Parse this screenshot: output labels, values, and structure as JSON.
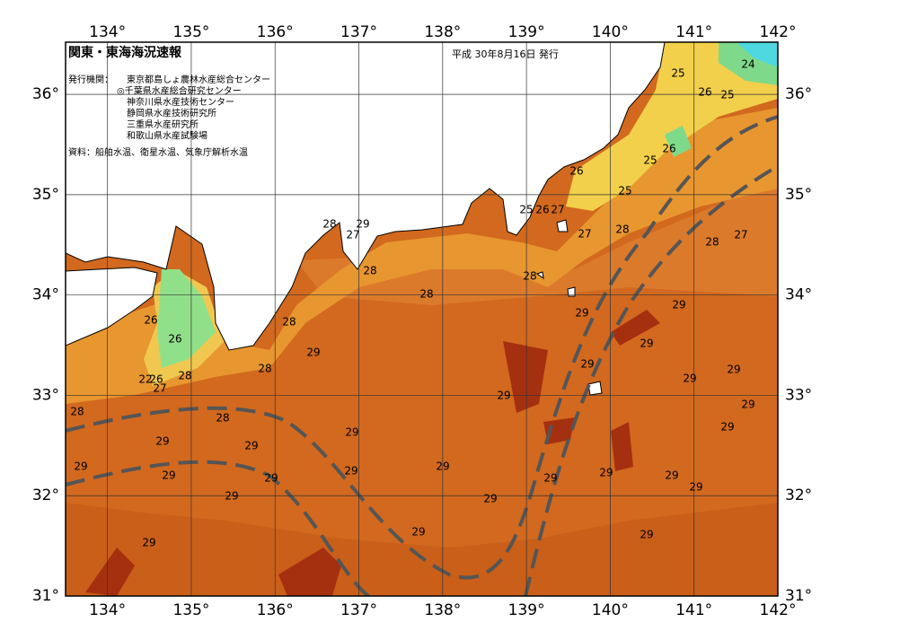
{
  "header": {
    "title": "関東・東海海況速報",
    "date": "平成 30年8月16日 発行",
    "issuer_label": "発行機関：",
    "issuers": [
      "東京都島しょ農林水産総合センター",
      "◎千葉県水産総合研究センター",
      "神奈川県水産技術センター",
      "静岡県水産技術研究所",
      "三重県水産研究所",
      "和歌山県水産試験場"
    ],
    "source": "資料：船舶水温、衛星水温、気象庁解析水温"
  },
  "map": {
    "lon_ticks": [
      {
        "value": 134,
        "label": "134°"
      },
      {
        "value": 135,
        "label": "135°"
      },
      {
        "value": 136,
        "label": "136°"
      },
      {
        "value": 137,
        "label": "137°"
      },
      {
        "value": 138,
        "label": "138°"
      },
      {
        "value": 139,
        "label": "139°"
      },
      {
        "value": 140,
        "label": "140°"
      },
      {
        "value": 141,
        "label": "141°"
      },
      {
        "value": 142,
        "label": "142°"
      }
    ],
    "lat_ticks": [
      {
        "value": 31,
        "label": "31°"
      },
      {
        "value": 32,
        "label": "32°"
      },
      {
        "value": 33,
        "label": "33°"
      },
      {
        "value": 34,
        "label": "34°"
      },
      {
        "value": 35,
        "label": "35°"
      },
      {
        "value": 36,
        "label": "36°"
      }
    ],
    "contour_labels": [
      25,
      24,
      26,
      25,
      26,
      25,
      26,
      25,
      25,
      26,
      27,
      28,
      27,
      28,
      27,
      28,
      29,
      27,
      28,
      28,
      28,
      29,
      29,
      26,
      28,
      26,
      29,
      29,
      29,
      28,
      29,
      22,
      26,
      28,
      27,
      29,
      29,
      29,
      28,
      28,
      29,
      29,
      29,
      29,
      29,
      29,
      29,
      29,
      29,
      29,
      29,
      29,
      29,
      29,
      29,
      29,
      29,
      29
    ]
  }
}
